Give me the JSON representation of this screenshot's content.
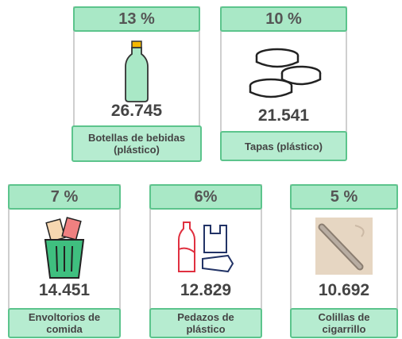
{
  "items": [
    {
      "percent": "13 %",
      "count": "26.745",
      "label": "Botellas de bebidas (plástico)"
    },
    {
      "percent": "10 %",
      "count": "21.541",
      "label": "Tapas (plástico)"
    },
    {
      "percent": "7 %",
      "count": "14.451",
      "label": "Envoltorios de comida"
    },
    {
      "percent": "6%",
      "count": "12.829",
      "label": "Pedazos de plástico"
    },
    {
      "percent": "5 %",
      "count": "10.692",
      "label": "Colillas de cigarrillo"
    }
  ]
}
